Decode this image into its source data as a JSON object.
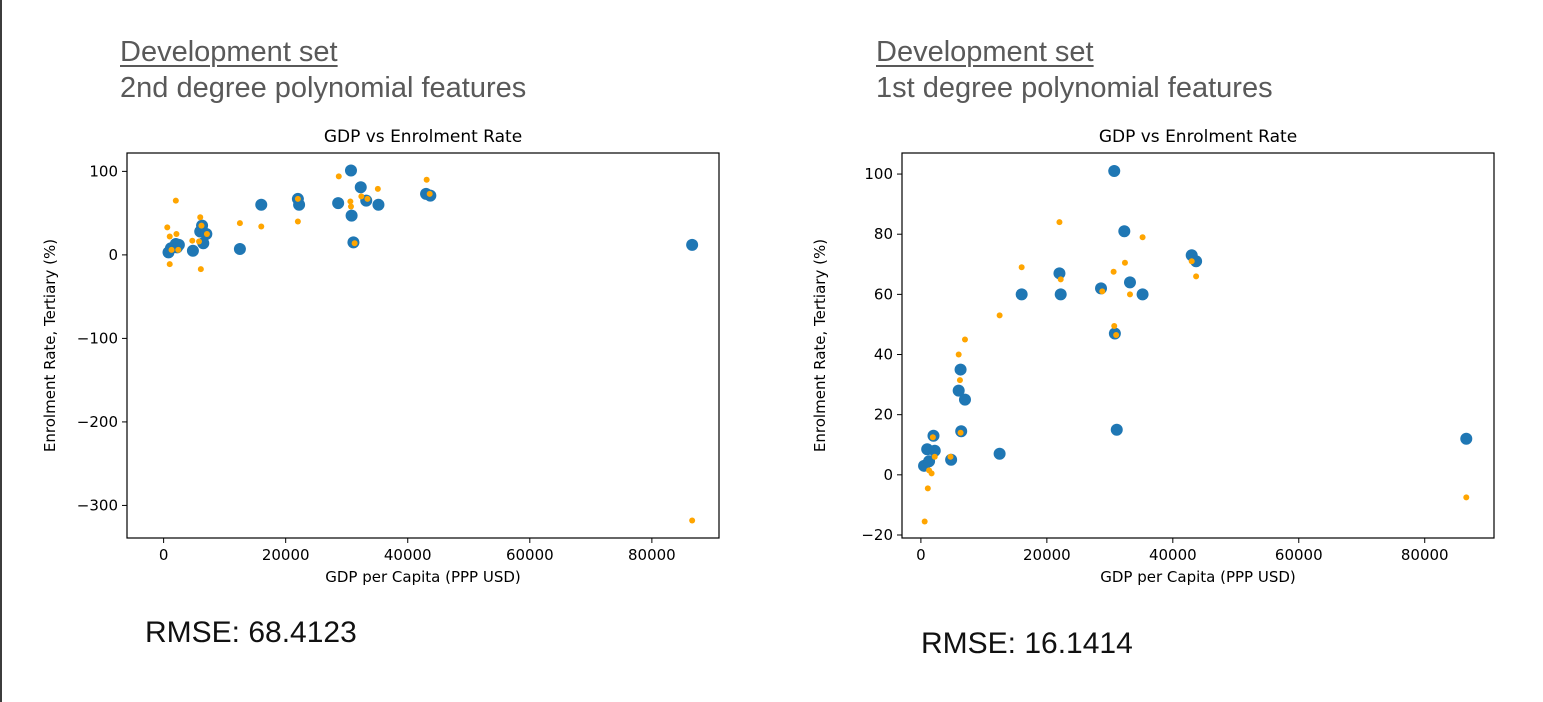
{
  "panels": [
    {
      "heading_line1": "Development set",
      "heading_line2": "2nd degree polynomial features",
      "rmse_label": "RMSE: 68.4123"
    },
    {
      "heading_line1": "Development set",
      "heading_line2": "1st degree polynomial features",
      "rmse_label": "RMSE: 16.1414"
    }
  ],
  "colors": {
    "actual": "#1f77b4",
    "predicted": "#ffa500",
    "axis": "#000000",
    "heading": "#595959"
  },
  "chart_data": [
    {
      "type": "scatter",
      "title": "GDP vs Enrolment Rate",
      "xlabel": "GDP per Capita (PPP USD)",
      "ylabel": "Enrolment Rate, Tertiary (%)",
      "xlim": [
        -6000,
        91000
      ],
      "ylim": [
        -339,
        122
      ],
      "xticks": [
        0,
        20000,
        40000,
        60000,
        80000
      ],
      "xtick_labels": [
        "0",
        "20000",
        "40000",
        "60000",
        "80000"
      ],
      "yticks": [
        100,
        0,
        -100,
        -200,
        -300
      ],
      "ytick_labels": [
        "100",
        "0",
        "−100",
        "−200",
        "−300"
      ],
      "grid": false,
      "series": [
        {
          "key": "actual",
          "marker": "large",
          "color": "#1f77b4",
          "points": [
            [
              800,
              3
            ],
            [
              1200,
              8
            ],
            [
              2000,
              13
            ],
            [
              2200,
              9
            ],
            [
              2500,
              12
            ],
            [
              4800,
              5
            ],
            [
              6000,
              28
            ],
            [
              6300,
              35
            ],
            [
              6500,
              14
            ],
            [
              7000,
              25
            ],
            [
              12500,
              7
            ],
            [
              16000,
              60
            ],
            [
              22000,
              67
            ],
            [
              22200,
              60
            ],
            [
              28600,
              62
            ],
            [
              30700,
              101
            ],
            [
              30800,
              47
            ],
            [
              31100,
              15
            ],
            [
              32300,
              81
            ],
            [
              33200,
              65
            ],
            [
              35200,
              60
            ],
            [
              43000,
              73
            ],
            [
              43700,
              71
            ],
            [
              86600,
              12
            ]
          ]
        },
        {
          "key": "predicted",
          "marker": "small",
          "color": "#ffa500",
          "points": [
            [
              600,
              33
            ],
            [
              1000,
              -11
            ],
            [
              1000,
              22
            ],
            [
              1300,
              6
            ],
            [
              2000,
              65
            ],
            [
              2100,
              25
            ],
            [
              2400,
              6
            ],
            [
              4700,
              17
            ],
            [
              5800,
              16
            ],
            [
              6000,
              45
            ],
            [
              6100,
              -17
            ],
            [
              6200,
              35
            ],
            [
              7100,
              25
            ],
            [
              12500,
              38
            ],
            [
              16000,
              34
            ],
            [
              22000,
              40
            ],
            [
              22000,
              67
            ],
            [
              28700,
              94
            ],
            [
              30600,
              64
            ],
            [
              30700,
              58
            ],
            [
              31300,
              14
            ],
            [
              32400,
              70
            ],
            [
              33400,
              67
            ],
            [
              35100,
              79
            ],
            [
              43100,
              90
            ],
            [
              43600,
              73
            ],
            [
              86600,
              -318
            ]
          ]
        }
      ]
    },
    {
      "type": "scatter",
      "title": "GDP vs Enrolment Rate",
      "xlabel": "GDP per Capita (PPP USD)",
      "ylabel": "Enrolment Rate, Tertiary (%)",
      "xlim": [
        -3000,
        91000
      ],
      "ylim": [
        -21,
        107
      ],
      "xticks": [
        0,
        20000,
        40000,
        60000,
        80000
      ],
      "xtick_labels": [
        "0",
        "20000",
        "40000",
        "60000",
        "80000"
      ],
      "yticks": [
        100,
        80,
        60,
        40,
        20,
        0,
        -20
      ],
      "ytick_labels": [
        "100",
        "80",
        "60",
        "40",
        "20",
        "0",
        "−20"
      ],
      "grid": false,
      "series": [
        {
          "key": "actual",
          "marker": "large",
          "color": "#1f77b4",
          "points": [
            [
              500,
              3
            ],
            [
              1000,
              8.5
            ],
            [
              1300,
              4.5
            ],
            [
              2000,
              13
            ],
            [
              2200,
              8
            ],
            [
              4800,
              5
            ],
            [
              6000,
              28
            ],
            [
              6300,
              35
            ],
            [
              6400,
              14.5
            ],
            [
              7000,
              25
            ],
            [
              12500,
              7
            ],
            [
              16000,
              60
            ],
            [
              22000,
              67
            ],
            [
              22200,
              60
            ],
            [
              28600,
              62
            ],
            [
              30700,
              101
            ],
            [
              30800,
              47
            ],
            [
              31100,
              15
            ],
            [
              32300,
              81
            ],
            [
              33200,
              64
            ],
            [
              35200,
              60
            ],
            [
              43000,
              73
            ],
            [
              43700,
              71
            ],
            [
              86600,
              12
            ]
          ]
        },
        {
          "key": "predicted",
          "marker": "small",
          "color": "#ffa500",
          "points": [
            [
              600,
              -15.5
            ],
            [
              1100,
              -4.5
            ],
            [
              1300,
              1.5
            ],
            [
              1700,
              0.5
            ],
            [
              1900,
              12.5
            ],
            [
              2200,
              6
            ],
            [
              4700,
              6
            ],
            [
              6000,
              40
            ],
            [
              6200,
              31.5
            ],
            [
              6300,
              14
            ],
            [
              7000,
              45
            ],
            [
              12500,
              53
            ],
            [
              16000,
              69
            ],
            [
              22000,
              84
            ],
            [
              22200,
              65
            ],
            [
              28800,
              61
            ],
            [
              30600,
              67.5
            ],
            [
              30700,
              49.5
            ],
            [
              31000,
              46.5
            ],
            [
              32400,
              70.5
            ],
            [
              33200,
              60
            ],
            [
              35200,
              79
            ],
            [
              43000,
              71
            ],
            [
              43700,
              66
            ],
            [
              86600,
              -7.5
            ]
          ]
        }
      ]
    }
  ]
}
